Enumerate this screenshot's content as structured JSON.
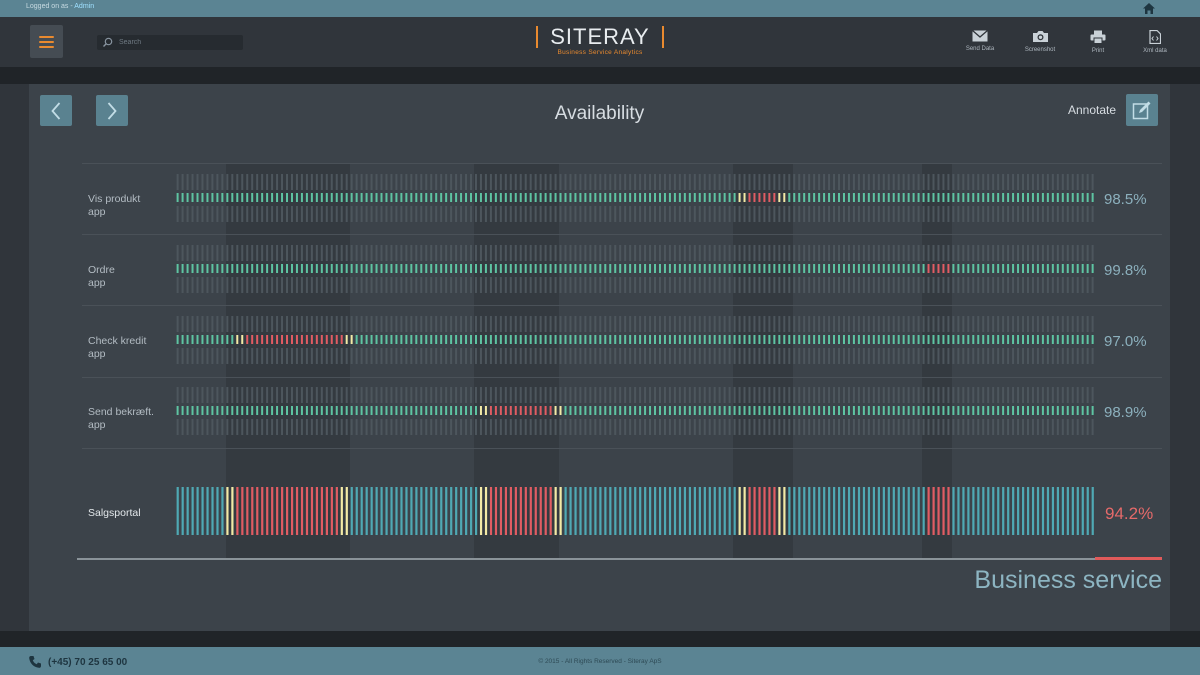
{
  "topbar": {
    "logged_prefix": "Logged on as -",
    "user": "Admin",
    "home_icon": "home-icon"
  },
  "header": {
    "search_placeholder": "Search",
    "brand_name": "SITERAY",
    "brand_tagline": "Business Service Analytics",
    "actions": [
      {
        "label": "Send Data",
        "icon": "mail-icon"
      },
      {
        "label": "Screenshot",
        "icon": "camera-icon"
      },
      {
        "label": "Print",
        "icon": "printer-icon"
      },
      {
        "label": "Xml data",
        "icon": "xml-file-icon"
      }
    ]
  },
  "main": {
    "title": "Availability",
    "annotate_label": "Annotate",
    "rows": [
      {
        "label_line1": "Vis produkt",
        "label_line2": "app",
        "percent": "98.5%"
      },
      {
        "label_line1": "Ordre",
        "label_line2": "app",
        "percent": "99.8%"
      },
      {
        "label_line1": "Check kredit",
        "label_line2": "app",
        "percent": "97.0%"
      },
      {
        "label_line1": "Send bekræft.",
        "label_line2": "app",
        "percent": "98.9%"
      }
    ],
    "summary": {
      "label": "Salgsportal",
      "percent": "94.2%"
    },
    "service_title": "Business service"
  },
  "chart_data": {
    "type": "heatmap",
    "slot_count": 185,
    "colors": {
      "ok_row": "#5ec4a2",
      "ok_summary": "#4fa9b4",
      "warn": "#f3eaa6",
      "bad": "#e15c63",
      "dim": "#4d565d"
    },
    "rows": [
      {
        "name": "Vis produkt app",
        "incidents": [
          {
            "from": 113,
            "to": 122,
            "warn_edges": true
          }
        ]
      },
      {
        "name": "Ordre app",
        "incidents": [
          {
            "from": 151,
            "to": 155,
            "warn_edges": false
          }
        ]
      },
      {
        "name": "Check kredit app",
        "incidents": [
          {
            "from": 12,
            "to": 35,
            "warn_edges": true
          }
        ]
      },
      {
        "name": "Send bekræft. app",
        "incidents": [
          {
            "from": 61,
            "to": 77,
            "warn_edges": true
          }
        ]
      }
    ],
    "summary": {
      "name": "Salgsportal",
      "incidents": [
        {
          "from": 10,
          "to": 34,
          "warn_edges": true
        },
        {
          "from": 61,
          "to": 77,
          "warn_edges": true
        },
        {
          "from": 113,
          "to": 122,
          "warn_edges": true
        },
        {
          "from": 151,
          "to": 155,
          "warn_edges": false
        }
      ]
    },
    "highlight_slots": [
      [
        10,
        34
      ],
      [
        60,
        76
      ],
      [
        112,
        123
      ],
      [
        150,
        155
      ]
    ]
  },
  "footer": {
    "phone": "(+45) 70 25 65 00",
    "copyright": "© 2015 - All Rights Reserved - Siteray ApS"
  }
}
